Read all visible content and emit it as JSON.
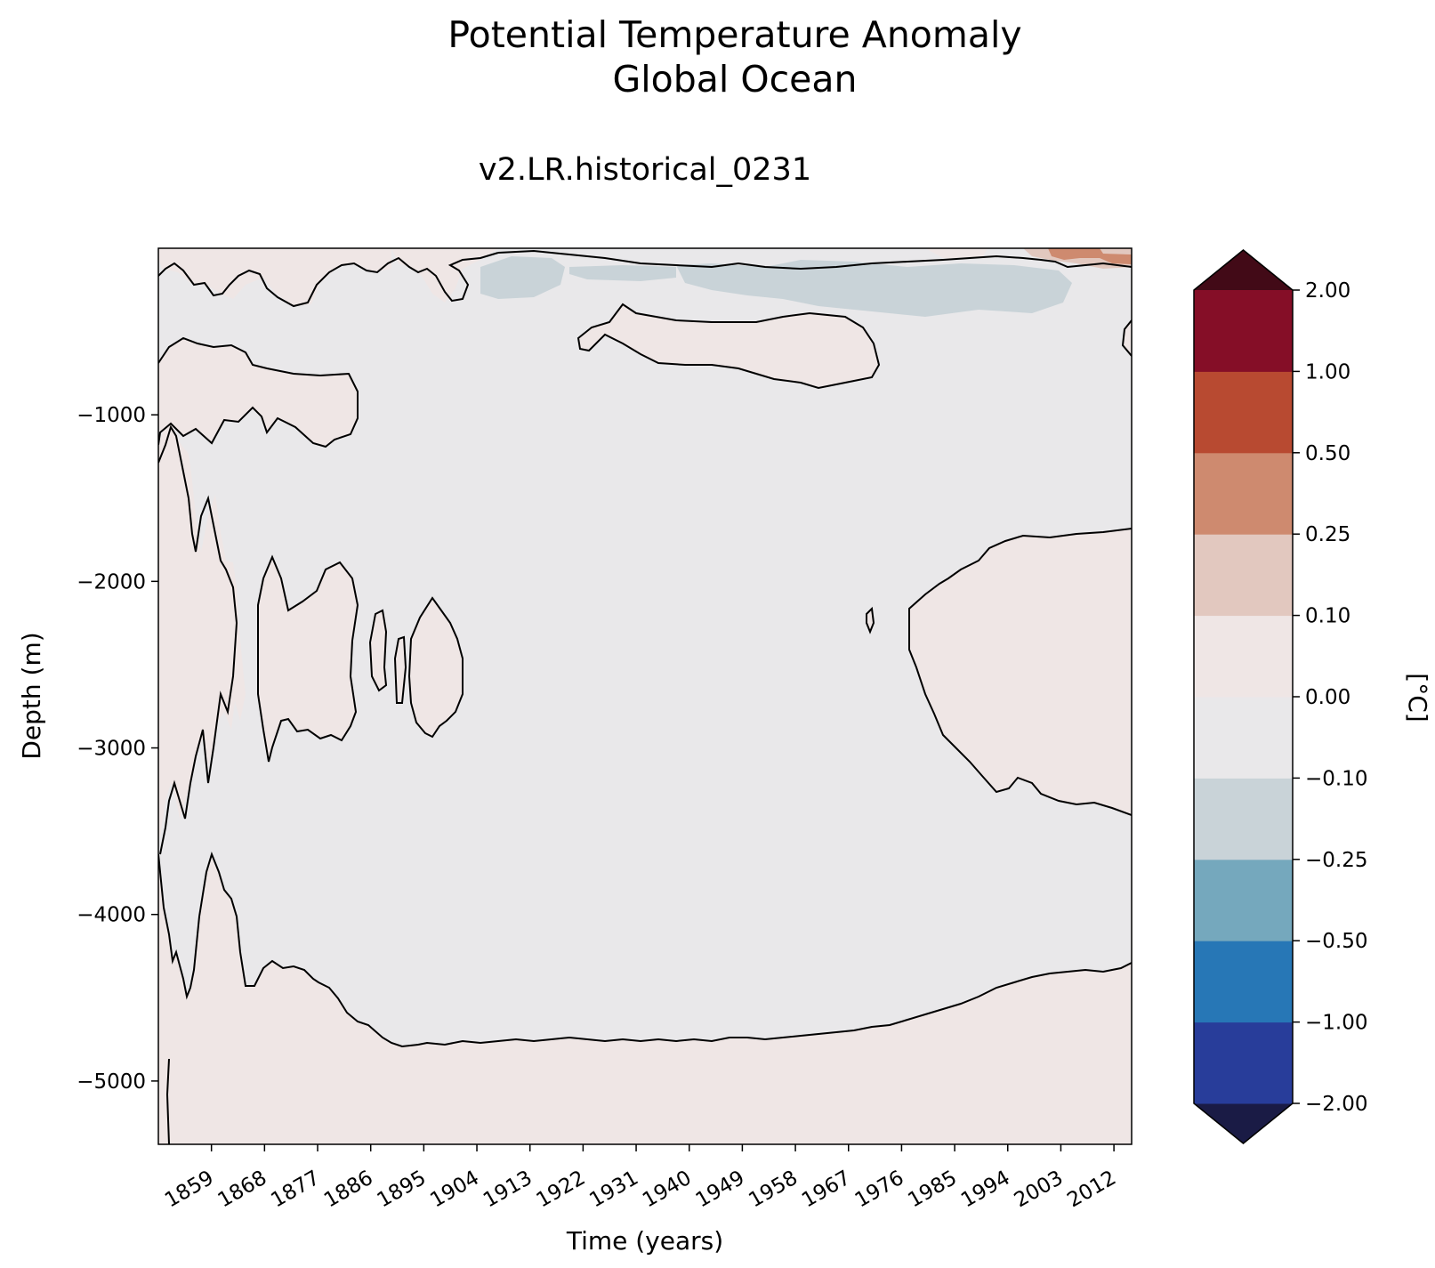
{
  "chart_data": {
    "type": "heatmap",
    "subtype": "filled-contour",
    "title": [
      "Potential Temperature Anomaly",
      "Global Ocean"
    ],
    "subtitle": "v2.LR.historical_0231",
    "xlabel": "Time (years)",
    "ylabel": "Depth (m)",
    "xlim": [
      1850,
      2015
    ],
    "ylim": [
      -5380,
      0
    ],
    "xticks": [
      1859,
      1868,
      1877,
      1886,
      1895,
      1904,
      1913,
      1922,
      1931,
      1940,
      1949,
      1958,
      1967,
      1976,
      1985,
      1994,
      2003,
      2012
    ],
    "xtick_labels": [
      "1859",
      "1868",
      "1877",
      "1886",
      "1895",
      "1904",
      "1913",
      "1922",
      "1931",
      "1940",
      "1949",
      "1958",
      "1967",
      "1976",
      "1985",
      "1994",
      "2003",
      "2012"
    ],
    "yticks": [
      -1000,
      -2000,
      -3000,
      -4000,
      -5000
    ],
    "ytick_labels": [
      "−1000",
      "−2000",
      "−3000",
      "−4000",
      "−5000"
    ],
    "grid": false,
    "background_level": "-0.10 to 0.00",
    "colorbar": {
      "label": "[°C]",
      "extend": "both",
      "levels": [
        -2.0,
        -1.0,
        -0.5,
        -0.25,
        -0.1,
        0.0,
        0.1,
        0.25,
        0.5,
        1.0,
        2.0
      ],
      "tick_labels": [
        "−2.00",
        "−1.00",
        "−0.50",
        "−0.25",
        "−0.10",
        "0.00",
        "0.10",
        "0.25",
        "0.50",
        "1.00",
        "2.00"
      ],
      "colors": [
        "#283d9a",
        "#2777b6",
        "#75a8bd",
        "#c9d3d8",
        "#e9e8ea",
        "#efe6e5",
        "#e2c8bf",
        "#ce8a6f",
        "#b84a31",
        "#850e27"
      ],
      "under_color": "#1a1b45",
      "over_color": "#420a17"
    },
    "regions": [
      {
        "name": "shallow cold band 1905-1925",
        "level": "-0.25 to -0.10",
        "x": [
          1904,
          1926
        ],
        "y": [
          -30,
          -300
        ]
      },
      {
        "name": "shallow cold band 1944-2000",
        "level": "-0.25 to -0.10",
        "x": [
          1944,
          2000
        ],
        "y": [
          -30,
          -400
        ]
      },
      {
        "name": "surface warm 2008-2015",
        "level": "0.25 to 0.50",
        "x": [
          2008,
          2015
        ],
        "y": [
          0,
          -100
        ]
      },
      {
        "name": "surface warm 1850-1912",
        "level": "0.00 to 0.10",
        "x": [
          1850,
          1912
        ],
        "y": [
          0,
          -380
        ]
      },
      {
        "name": "warm lens 1920s-1970",
        "level": "0.00 to 0.10",
        "x": [
          1919,
          1971
        ],
        "y": [
          -360,
          -850
        ]
      },
      {
        "name": "warm lens 1850-1885",
        "level": "0.00 to 0.10",
        "x": [
          1850,
          1885
        ],
        "y": [
          -550,
          -1200
        ]
      },
      {
        "name": "deep warm pulses 1850-1902",
        "level": "0.00 to 0.10",
        "x": [
          1850,
          1902
        ],
        "y": [
          -1050,
          -3500
        ]
      },
      {
        "name": "deep warm lens 1975-2015",
        "level": "0.00 to 0.10",
        "x": [
          1975,
          2015
        ],
        "y": [
          -1700,
          -3400
        ]
      },
      {
        "name": "abyssal warm layer",
        "level": "0.00 to 0.10",
        "x": [
          1850,
          2015
        ],
        "y": [
          -3700,
          -5380
        ]
      }
    ]
  }
}
